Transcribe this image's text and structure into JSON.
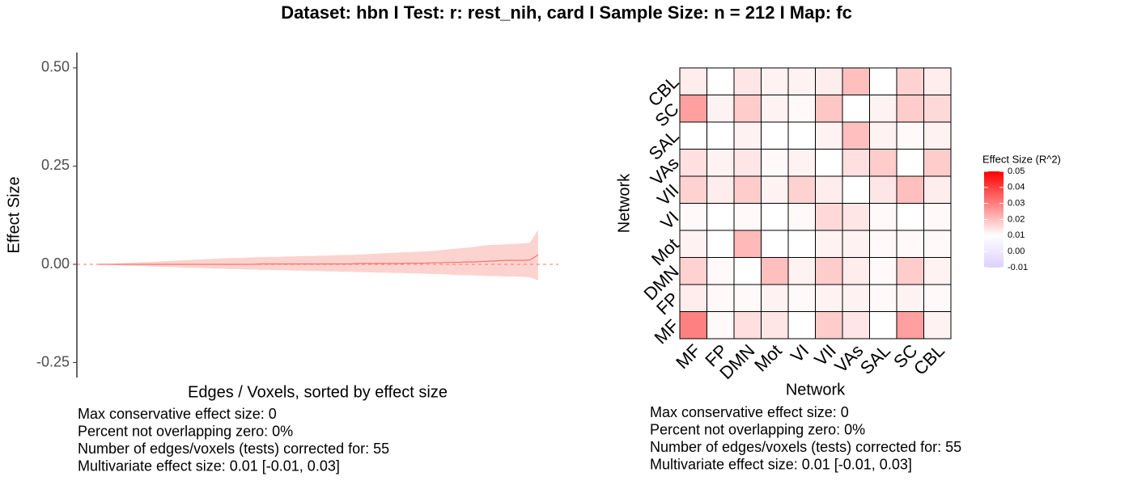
{
  "title": "Dataset: hbn   I  Test: r: rest_nih, card   I   Sample Size: n = 212   I  Map: fc",
  "chart_data": [
    {
      "type": "line",
      "x_label": "Edges / Voxels, sorted by effect size",
      "y_label": "Effect Size",
      "x": [
        1,
        2,
        3,
        4,
        5,
        6,
        7,
        8,
        9,
        10,
        11,
        12,
        13,
        14,
        15,
        16,
        17,
        18,
        19,
        20,
        21,
        22,
        23,
        24,
        25,
        26,
        27,
        28,
        29,
        30,
        31,
        32,
        33,
        34,
        35,
        36,
        37,
        38,
        39,
        40,
        41,
        42,
        43,
        44,
        45,
        46,
        47,
        48,
        49,
        50,
        51,
        52,
        53,
        54,
        55
      ],
      "values": [
        0,
        0,
        0,
        0,
        0,
        0,
        0,
        0,
        0,
        0,
        0,
        0,
        0,
        0,
        0,
        0,
        0,
        0,
        0,
        0,
        0.001,
        0.001,
        0.001,
        0.001,
        0.001,
        0.001,
        0.001,
        0.001,
        0.001,
        0.001,
        0.001,
        0.001,
        0.002,
        0.002,
        0.002,
        0.002,
        0.002,
        0.002,
        0.003,
        0.003,
        0.003,
        0.004,
        0.004,
        0.005,
        0.005,
        0.006,
        0.006,
        0.007,
        0.008,
        0.009,
        0.01,
        0.01,
        0.01,
        0.011,
        0.024
      ],
      "upper": [
        0,
        0.001,
        0.002,
        0.003,
        0.004,
        0.005,
        0.006,
        0.007,
        0.008,
        0.009,
        0.01,
        0.011,
        0.012,
        0.013,
        0.014,
        0.015,
        0.016,
        0.016,
        0.017,
        0.018,
        0.018,
        0.019,
        0.019,
        0.02,
        0.02,
        0.021,
        0.021,
        0.022,
        0.022,
        0.023,
        0.024,
        0.024,
        0.025,
        0.026,
        0.027,
        0.028,
        0.029,
        0.03,
        0.031,
        0.032,
        0.033,
        0.034,
        0.036,
        0.038,
        0.04,
        0.042,
        0.044,
        0.047,
        0.049,
        0.05,
        0.051,
        0.052,
        0.053,
        0.055,
        0.088
      ],
      "lower": [
        0,
        -0.001,
        -0.002,
        -0.003,
        -0.004,
        -0.004,
        -0.005,
        -0.006,
        -0.007,
        -0.007,
        -0.008,
        -0.009,
        -0.009,
        -0.01,
        -0.011,
        -0.011,
        -0.012,
        -0.012,
        -0.013,
        -0.013,
        -0.014,
        -0.014,
        -0.015,
        -0.015,
        -0.016,
        -0.016,
        -0.017,
        -0.017,
        -0.018,
        -0.018,
        -0.019,
        -0.019,
        -0.02,
        -0.02,
        -0.021,
        -0.021,
        -0.022,
        -0.022,
        -0.023,
        -0.023,
        -0.024,
        -0.025,
        -0.025,
        -0.026,
        -0.027,
        -0.028,
        -0.028,
        -0.029,
        -0.03,
        -0.03,
        -0.031,
        -0.031,
        -0.032,
        -0.033,
        -0.041
      ],
      "color": "#f8766d",
      "band_color": "#fdd3cf",
      "hline": 0,
      "xlim": [
        -1.7,
        57.5
      ],
      "ylim": [
        -0.288,
        0.539
      ],
      "yticks": [
        {
          "value": 0.5,
          "label": "0.50"
        },
        0.25,
        {
          "value": 0,
          "label": "0.00"
        },
        -0.25
      ],
      "notes": [
        "Max conservative effect size: 0",
        "Percent not overlapping zero: 0%",
        "Number of edges/voxels (tests) corrected for: 55",
        "Multivariate effect size: 0.01 [-0.01, 0.03]"
      ]
    },
    {
      "type": "heatmap",
      "x_label": "Network",
      "y_label": "Network",
      "categories": [
        "MF",
        "FP",
        "DMN",
        "Mot",
        "VI",
        "VII",
        "VAs",
        "SAL",
        "SC",
        "CBL"
      ],
      "y_categories": [
        "MF",
        "FP",
        "DMN",
        "Mot",
        "VI",
        "VII",
        "VAs",
        "SAL",
        "SC",
        "CBL"
      ],
      "z": [
        [
          0.03,
          0.011,
          0.015,
          0.014,
          0.01,
          0.018,
          0.014,
          0.01,
          0.025,
          0.012
        ],
        [
          0.013,
          0.011,
          0.011,
          0.012,
          0.011,
          0.012,
          0.012,
          0.011,
          0.012,
          0.011
        ],
        [
          0.017,
          0.011,
          0.01,
          0.02,
          0.012,
          0.018,
          0.013,
          0.011,
          0.018,
          0.012
        ],
        [
          0.012,
          0.01,
          0.021,
          0.01,
          0.01,
          0.012,
          0.012,
          0.011,
          0.011,
          0.011
        ],
        [
          0.011,
          0.01,
          0.011,
          0.01,
          0.011,
          0.016,
          0.014,
          0.011,
          0.01,
          0.011
        ],
        [
          0.017,
          0.013,
          0.018,
          0.012,
          0.017,
          0.013,
          0.01,
          0.014,
          0.02,
          0.013
        ],
        [
          0.015,
          0.012,
          0.014,
          0.011,
          0.012,
          0.01,
          0.015,
          0.018,
          0.01,
          0.018
        ],
        [
          0.01,
          0.01,
          0.012,
          0.01,
          0.01,
          0.012,
          0.02,
          0.012,
          0.011,
          0.012
        ],
        [
          0.025,
          0.012,
          0.018,
          0.012,
          0.011,
          0.019,
          0.01,
          0.012,
          0.018,
          0.016
        ],
        [
          0.013,
          0.01,
          0.014,
          0.012,
          0.012,
          0.013,
          0.02,
          0.01,
          0.017,
          0.013
        ]
      ],
      "legend_title": "Effect Size (R^2)",
      "color_low": "#ddd0ff",
      "color_mid": "#ffffff",
      "color_high": "#ff0000",
      "color_mid_value": 0.01,
      "clim": [
        -0.01,
        0.05
      ],
      "cticks": [
        {
          "value": 0.05,
          "label": "0.05"
        },
        0.04,
        0.03,
        0.02,
        0.01,
        {
          "value": 0,
          "label": "0.00"
        },
        -0.01
      ],
      "notes": [
        "Max conservative effect size: 0",
        "Percent not overlapping zero: 0%",
        "Number of edges/voxels (tests) corrected for: 55",
        "Multivariate effect size: 0.01 [-0.01, 0.03]"
      ]
    }
  ]
}
